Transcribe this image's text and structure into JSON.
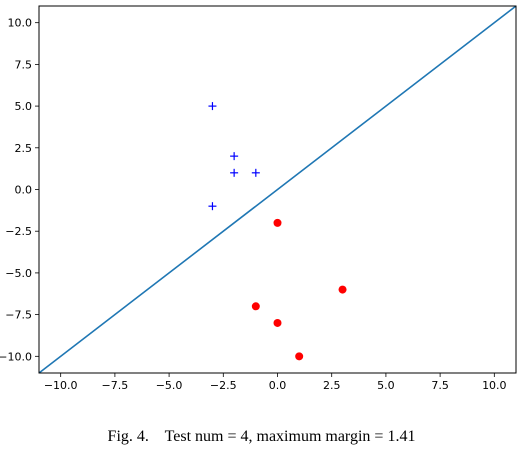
{
  "caption": "Fig. 4.    Test num = 4, maximum margin = 1.41",
  "chart_data": {
    "type": "scatter",
    "xlim": [
      -11,
      11
    ],
    "ylim": [
      -11,
      11
    ],
    "xticks": [
      -10.0,
      -7.5,
      -5.0,
      -2.5,
      0.0,
      2.5,
      5.0,
      7.5,
      10.0
    ],
    "yticks": [
      -10.0,
      -7.5,
      -5.0,
      -2.5,
      0.0,
      2.5,
      5.0,
      7.5,
      10.0
    ],
    "xtick_labels": [
      "−10.0",
      "−7.5",
      "−5.0",
      "−2.5",
      "0.0",
      "2.5",
      "5.0",
      "7.5",
      "10.0"
    ],
    "ytick_labels": [
      "−10.0",
      "−7.5",
      "−5.0",
      "−2.5",
      "0.0",
      "2.5",
      "5.0",
      "7.5",
      "10.0"
    ],
    "grid": false,
    "series": [
      {
        "marker": "plus",
        "color": "#0000ff",
        "points": [
          [
            -3,
            5
          ],
          [
            -2,
            2
          ],
          [
            -2,
            1
          ],
          [
            -1,
            1
          ],
          [
            -3,
            -1
          ]
        ]
      },
      {
        "marker": "circle",
        "color": "#ff0000",
        "points": [
          [
            0,
            -2
          ],
          [
            3,
            -6
          ],
          [
            -1,
            -7
          ],
          [
            0,
            -8
          ],
          [
            1,
            -10
          ]
        ]
      }
    ],
    "line": {
      "color": "#1f77b4",
      "points": [
        [
          -11,
          -11
        ],
        [
          11,
          11
        ]
      ]
    }
  }
}
